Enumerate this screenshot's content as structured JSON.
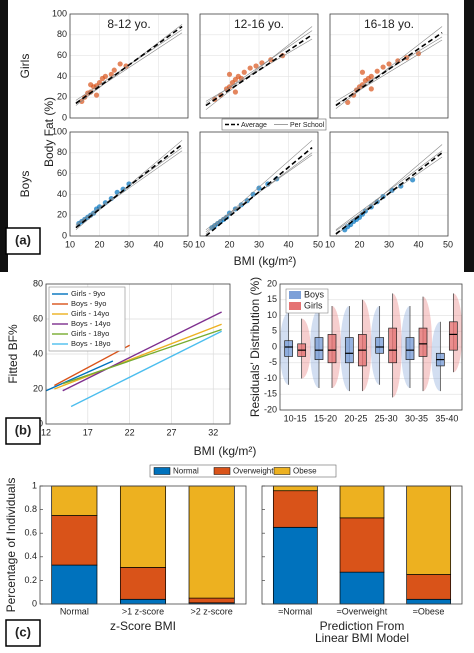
{
  "chart_data": [
    {
      "type": "scatter",
      "panel_label": "(a)",
      "xlabel": "BMI (kg/m²)",
      "ylabel": "Body Fat (%)",
      "row_labels": [
        "Girls",
        "Boys"
      ],
      "legend": [
        "Average",
        "Per School"
      ],
      "xlim": [
        10,
        50
      ],
      "xticks": [
        10,
        20,
        30,
        40,
        50
      ],
      "ylim": [
        0,
        100
      ],
      "yticks": [
        0,
        20,
        40,
        60,
        80,
        100
      ],
      "grid": true,
      "panels": [
        {
          "title": "8-12 yo.",
          "color": "#d95319",
          "x": [
            14,
            15,
            16,
            17,
            18,
            19,
            20,
            21,
            22,
            24,
            25,
            27,
            29,
            17,
            19
          ],
          "values": [
            16,
            20,
            24,
            25,
            30,
            31,
            34,
            38,
            40,
            42,
            46,
            52,
            50,
            32,
            22
          ],
          "average": {
            "x": [
              12,
              48
            ],
            "values": [
              14,
              88
            ]
          },
          "schools": [
            {
              "x": [
                12,
                48
              ],
              "values": [
                17,
                85
              ]
            },
            {
              "x": [
                12,
                48
              ],
              "values": [
                12,
                90
              ]
            },
            {
              "x": [
                12,
                48
              ],
              "values": [
                15,
                82
              ]
            }
          ]
        },
        {
          "title": "12-16 yo.",
          "color": "#d95319",
          "x": [
            15,
            17,
            19,
            20,
            21,
            22,
            23,
            24,
            25,
            27,
            29,
            31,
            34,
            38,
            20,
            22
          ],
          "values": [
            18,
            22,
            28,
            30,
            34,
            37,
            40,
            38,
            44,
            48,
            50,
            53,
            56,
            60,
            42,
            25
          ],
          "average": {
            "x": [
              12,
              48
            ],
            "values": [
              12,
              80
            ]
          },
          "schools": [
            {
              "x": [
                12,
                48
              ],
              "values": [
                16,
                76
              ]
            },
            {
              "x": [
                12,
                48
              ],
              "values": [
                8,
                88
              ]
            },
            {
              "x": [
                12,
                48
              ],
              "values": [
                14,
                84
              ]
            }
          ]
        },
        {
          "title": "16-18 yo.",
          "color": "#d95319",
          "x": [
            16,
            18,
            19,
            20,
            21,
            22,
            23,
            24,
            26,
            28,
            30,
            33,
            36,
            40,
            21,
            24
          ],
          "values": [
            15,
            22,
            27,
            30,
            32,
            36,
            38,
            40,
            45,
            49,
            52,
            55,
            58,
            62,
            44,
            28
          ],
          "average": {
            "x": [
              12,
              48
            ],
            "values": [
              12,
              82
            ]
          },
          "schools": [
            {
              "x": [
                12,
                48
              ],
              "values": [
                16,
                78
              ]
            },
            {
              "x": [
                12,
                48
              ],
              "values": [
                9,
                88
              ]
            },
            {
              "x": [
                12,
                48
              ],
              "values": [
                13,
                75
              ]
            }
          ]
        },
        {
          "color": "#0072bd",
          "x": [
            13,
            14,
            15,
            16,
            17,
            18,
            19,
            20,
            22,
            24,
            26,
            28,
            30
          ],
          "values": [
            12,
            14,
            16,
            18,
            20,
            22,
            26,
            28,
            32,
            36,
            42,
            45,
            50
          ],
          "average": {
            "x": [
              12,
              48
            ],
            "values": [
              8,
              88
            ]
          },
          "schools": [
            {
              "x": [
                12,
                48
              ],
              "values": [
                10,
                82
              ]
            },
            {
              "x": [
                12,
                48
              ],
              "values": [
                6,
                92
              ]
            },
            {
              "x": [
                12,
                48
              ],
              "values": [
                11,
                85
              ]
            }
          ]
        },
        {
          "color": "#0072bd",
          "x": [
            14,
            15,
            16,
            17,
            18,
            19,
            20,
            22,
            24,
            26,
            28,
            30,
            33,
            36
          ],
          "values": [
            8,
            10,
            12,
            14,
            16,
            18,
            22,
            26,
            30,
            34,
            40,
            46,
            50,
            55
          ],
          "average": {
            "x": [
              12,
              48
            ],
            "values": [
              0,
              85
            ]
          },
          "schools": [
            {
              "x": [
                12,
                48
              ],
              "values": [
                4,
                80
              ]
            },
            {
              "x": [
                12,
                48
              ],
              "values": [
                2,
                92
              ]
            },
            {
              "x": [
                12,
                48
              ],
              "values": [
                6,
                78
              ]
            }
          ]
        },
        {
          "color": "#0072bd",
          "x": [
            15,
            16,
            17,
            18,
            19,
            20,
            21,
            22,
            24,
            26,
            28,
            31,
            34,
            38
          ],
          "values": [
            6,
            9,
            11,
            14,
            16,
            18,
            21,
            24,
            28,
            33,
            38,
            44,
            48,
            54
          ],
          "average": {
            "x": [
              12,
              48
            ],
            "values": [
              2,
              80
            ]
          },
          "schools": [
            {
              "x": [
                12,
                48
              ],
              "values": [
                5,
                76
              ]
            },
            {
              "x": [
                12,
                48
              ],
              "values": [
                1,
                88
              ]
            },
            {
              "x": [
                12,
                48
              ],
              "values": [
                6,
                82
              ]
            }
          ]
        }
      ]
    },
    {
      "type": "line",
      "panel_label": "(b)",
      "xlabel": "BMI (kg/m²)",
      "ylabel": "Fitted BF%",
      "xlim": [
        12,
        34
      ],
      "xticks": [
        12,
        17,
        22,
        27,
        32
      ],
      "ylim": [
        0,
        80
      ],
      "yticks": [
        0,
        20,
        40,
        60,
        80
      ],
      "grid": true,
      "series": [
        {
          "name": "Girls - 9yo",
          "color": "#0072bd",
          "x": [
            12,
            20
          ],
          "values": [
            19,
            36
          ]
        },
        {
          "name": "Boys - 9yo",
          "color": "#d95319",
          "x": [
            13,
            22
          ],
          "values": [
            22,
            45
          ]
        },
        {
          "name": "Girls - 14yo",
          "color": "#edb120",
          "x": [
            13,
            33
          ],
          "values": [
            20,
            57
          ]
        },
        {
          "name": "Boys - 14yo",
          "color": "#7e2f8e",
          "x": [
            14,
            33
          ],
          "values": [
            19,
            64
          ]
        },
        {
          "name": "Girls - 18yo",
          "color": "#77ac30",
          "x": [
            14,
            33
          ],
          "values": [
            23,
            54
          ]
        },
        {
          "name": "Boys - 18yo",
          "color": "#4dbeee",
          "x": [
            15,
            33
          ],
          "values": [
            10,
            53
          ]
        }
      ]
    },
    {
      "type": "box",
      "ylabel": "Residuals' Distribution (%)",
      "categories": [
        "10-15",
        "15-20",
        "20-25",
        "25-30",
        "30-35",
        "35-40"
      ],
      "ylim": [
        -20,
        20
      ],
      "yticks": [
        -20,
        -15,
        -10,
        -5,
        0,
        5,
        10,
        15,
        20
      ],
      "grid": true,
      "series": [
        {
          "name": "Boys",
          "color": "#7da0d8",
          "values": [
            0,
            -1,
            -2,
            0,
            -1,
            -4
          ],
          "q1": [
            -3,
            -4,
            -5,
            -2,
            -4,
            -6
          ],
          "q3": [
            2,
            3,
            3,
            3,
            3,
            -2
          ],
          "low": [
            -12,
            -13,
            -14,
            -12,
            -13,
            -14
          ],
          "high": [
            11,
            12,
            13,
            13,
            13,
            8
          ]
        },
        {
          "name": "Girls",
          "color": "#e57373",
          "values": [
            -1,
            -1,
            -1,
            -1,
            1,
            4
          ],
          "q1": [
            -3,
            -5,
            -6,
            -5,
            -3,
            -1
          ],
          "q3": [
            1,
            4,
            4,
            6,
            6,
            8
          ],
          "low": [
            -10,
            -13,
            -14,
            -16,
            -14,
            -8
          ],
          "high": [
            9,
            13,
            15,
            17,
            16,
            17
          ]
        }
      ]
    },
    {
      "type": "bar",
      "panel_label": "(c)",
      "ylabel": "Percentage of Individuals",
      "xlabel": [
        "z-Score BMI"
      ],
      "categories": [
        "Normal",
        ">1 z-score",
        ">2 z-score"
      ],
      "ylim": [
        0,
        1
      ],
      "yticks": [
        0,
        0.2,
        0.4,
        0.6,
        0.8,
        1
      ],
      "series": [
        {
          "name": "Normal",
          "color": "#0072bd",
          "values": [
            0.33,
            0.04,
            0.01
          ]
        },
        {
          "name": "Overweight",
          "color": "#d95319",
          "values": [
            0.42,
            0.27,
            0.04
          ]
        },
        {
          "name": "Obese",
          "color": "#edb120",
          "values": [
            0.25,
            0.69,
            0.95
          ]
        }
      ]
    },
    {
      "type": "bar",
      "xlabel": [
        "Prediction From",
        "Linear BMI Model"
      ],
      "categories": [
        "≈Normal",
        "≈Overweight",
        "≈Obese"
      ],
      "ylim": [
        0,
        1
      ],
      "yticks": [
        0,
        0.2,
        0.4,
        0.6,
        0.8,
        1
      ],
      "series": [
        {
          "color": "#0072bd",
          "values": [
            0.65,
            0.27,
            0.04
          ]
        },
        {
          "color": "#d95319",
          "values": [
            0.31,
            0.46,
            0.21
          ]
        },
        {
          "color": "#edb120",
          "values": [
            0.04,
            0.27,
            0.75
          ]
        }
      ]
    }
  ]
}
